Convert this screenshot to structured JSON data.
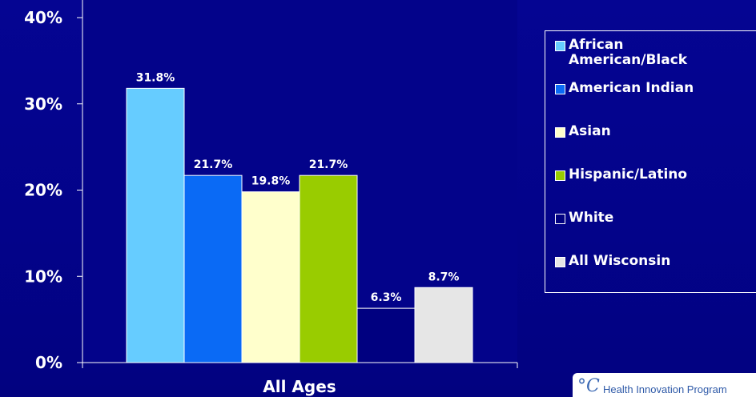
{
  "chart_data": {
    "type": "bar",
    "categories": [
      "All Ages"
    ],
    "series": [
      {
        "name": "African American/Black",
        "values": [
          31.8
        ],
        "color": "#66ccff",
        "label": "31.8%"
      },
      {
        "name": "American Indian",
        "values": [
          21.7
        ],
        "color": "#0a6af5",
        "label": "21.7%"
      },
      {
        "name": "Asian",
        "values": [
          19.8
        ],
        "color": "#ffffcc",
        "label": "19.8%"
      },
      {
        "name": "Hispanic/Latino",
        "values": [
          21.7
        ],
        "color": "#99cc00",
        "label": "21.7%"
      },
      {
        "name": "White",
        "values": [
          6.3
        ],
        "color": "#000080",
        "label": "6.3%"
      },
      {
        "name": "All Wisconsin",
        "values": [
          8.7
        ],
        "color": "#e6e6e6",
        "label": "8.7%"
      }
    ],
    "xlabel": "All Ages",
    "ylabel": "",
    "ylim": [
      0,
      40
    ],
    "yticks": [
      {
        "value": 0,
        "label": "0%"
      },
      {
        "value": 10,
        "label": "10%"
      },
      {
        "value": 20,
        "label": "20%"
      },
      {
        "value": 30,
        "label": "30%"
      },
      {
        "value": 40,
        "label": "40%"
      }
    ],
    "grid": false,
    "legend_position": "right",
    "plot_background": "#03038a",
    "legend": [
      {
        "text": "African\nAmerican/Black",
        "color": "#66ccff"
      },
      {
        "text": "American Indian",
        "color": "#0a6af5"
      },
      {
        "text": "Asian",
        "color": "#ffffcc"
      },
      {
        "text": "Hispanic/Latino",
        "color": "#99cc00"
      },
      {
        "text": "White",
        "color": "#000080"
      },
      {
        "text": "All Wisconsin",
        "color": "#e6e6e6"
      }
    ]
  },
  "logo": {
    "text": "Health Innovation Program",
    "icon": "health-innovation-logo-icon"
  }
}
